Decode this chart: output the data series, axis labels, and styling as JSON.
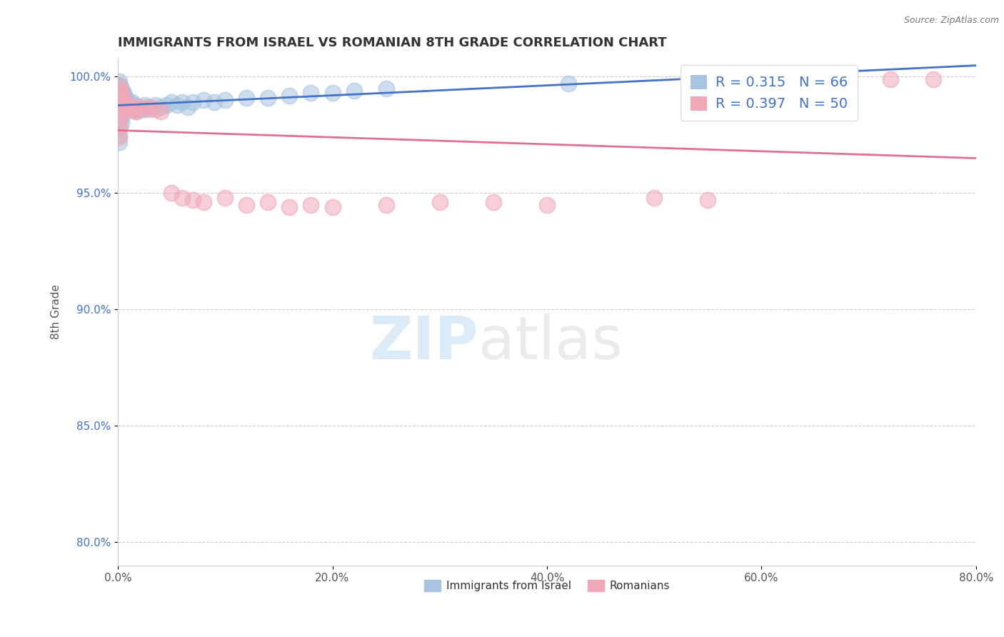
{
  "title": "IMMIGRANTS FROM ISRAEL VS ROMANIAN 8TH GRADE CORRELATION CHART",
  "source_text": "Source: ZipAtlas.com",
  "ylabel": "8th Grade",
  "xlabel": "",
  "xlim": [
    0.0,
    0.8
  ],
  "ylim": [
    0.79,
    1.008
  ],
  "xtick_labels": [
    "0.0%",
    "20.0%",
    "40.0%",
    "60.0%",
    "80.0%"
  ],
  "xtick_values": [
    0.0,
    0.2,
    0.4,
    0.6,
    0.8
  ],
  "ytick_labels": [
    "80.0%",
    "85.0%",
    "90.0%",
    "95.0%",
    "100.0%"
  ],
  "ytick_values": [
    0.8,
    0.85,
    0.9,
    0.95,
    1.0
  ],
  "legend_israel_label": "Immigrants from Israel",
  "legend_romanian_label": "Romanians",
  "israel_R": "0.315",
  "israel_N": "66",
  "romanian_R": "0.397",
  "romanian_N": "50",
  "israel_color": "#a8c4e0",
  "romanian_color": "#f0a8b8",
  "israel_line_color": "#4472c4",
  "romanian_line_color": "#e07090",
  "watermark": "ZIPatlas",
  "background_color": "#ffffff",
  "grid_color": "#cccccc",
  "title_color": "#333333",
  "israel_points_x": [
    0.001,
    0.001,
    0.001,
    0.001,
    0.001,
    0.001,
    0.001,
    0.001,
    0.001,
    0.001,
    0.002,
    0.002,
    0.002,
    0.002,
    0.003,
    0.003,
    0.003,
    0.003,
    0.003,
    0.004,
    0.004,
    0.004,
    0.004,
    0.005,
    0.005,
    0.005,
    0.006,
    0.006,
    0.007,
    0.007,
    0.008,
    0.008,
    0.009,
    0.01,
    0.011,
    0.012,
    0.013,
    0.014,
    0.015,
    0.016,
    0.018,
    0.02,
    0.022,
    0.025,
    0.028,
    0.03,
    0.035,
    0.04,
    0.045,
    0.05,
    0.055,
    0.06,
    0.065,
    0.07,
    0.08,
    0.09,
    0.1,
    0.12,
    0.14,
    0.16,
    0.18,
    0.2,
    0.22,
    0.25,
    0.42,
    0.62
  ],
  "israel_points_y": [
    0.998,
    0.996,
    0.994,
    0.99,
    0.988,
    0.985,
    0.983,
    0.979,
    0.975,
    0.972,
    0.996,
    0.993,
    0.989,
    0.985,
    0.995,
    0.991,
    0.988,
    0.984,
    0.98,
    0.994,
    0.991,
    0.987,
    0.983,
    0.993,
    0.99,
    0.987,
    0.992,
    0.988,
    0.991,
    0.987,
    0.99,
    0.986,
    0.989,
    0.988,
    0.987,
    0.988,
    0.989,
    0.987,
    0.988,
    0.986,
    0.985,
    0.987,
    0.986,
    0.988,
    0.987,
    0.986,
    0.988,
    0.987,
    0.988,
    0.989,
    0.988,
    0.989,
    0.987,
    0.989,
    0.99,
    0.989,
    0.99,
    0.991,
    0.991,
    0.992,
    0.993,
    0.993,
    0.994,
    0.995,
    0.997,
    0.999
  ],
  "romanian_points_x": [
    0.001,
    0.001,
    0.001,
    0.001,
    0.001,
    0.001,
    0.001,
    0.001,
    0.002,
    0.002,
    0.002,
    0.003,
    0.003,
    0.004,
    0.004,
    0.005,
    0.006,
    0.007,
    0.008,
    0.009,
    0.01,
    0.012,
    0.014,
    0.016,
    0.018,
    0.02,
    0.025,
    0.03,
    0.035,
    0.04,
    0.05,
    0.06,
    0.07,
    0.08,
    0.1,
    0.12,
    0.14,
    0.16,
    0.18,
    0.2,
    0.25,
    0.3,
    0.35,
    0.4,
    0.5,
    0.55,
    0.6,
    0.65,
    0.72,
    0.76
  ],
  "romanian_points_y": [
    0.996,
    0.993,
    0.99,
    0.987,
    0.984,
    0.981,
    0.978,
    0.974,
    0.994,
    0.99,
    0.987,
    0.993,
    0.989,
    0.991,
    0.987,
    0.99,
    0.988,
    0.987,
    0.988,
    0.986,
    0.987,
    0.986,
    0.987,
    0.985,
    0.986,
    0.987,
    0.986,
    0.987,
    0.986,
    0.985,
    0.95,
    0.948,
    0.947,
    0.946,
    0.948,
    0.945,
    0.946,
    0.944,
    0.945,
    0.944,
    0.945,
    0.946,
    0.946,
    0.945,
    0.948,
    0.947,
    0.999,
    0.999,
    0.999,
    0.999
  ]
}
